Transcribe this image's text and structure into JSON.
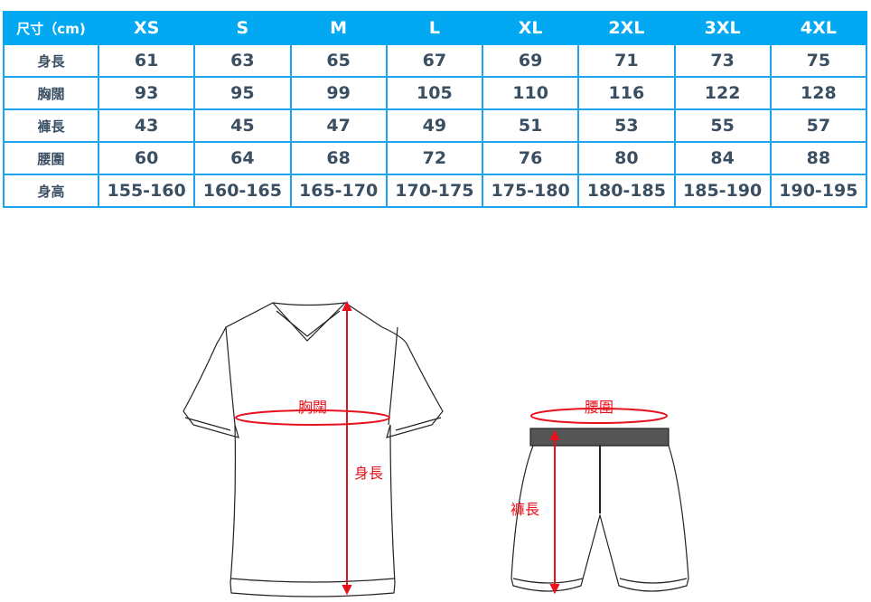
{
  "table": {
    "header_label": "尺寸（cm)",
    "sizes": [
      "XS",
      "S",
      "M",
      "L",
      "XL",
      "2XL",
      "3XL",
      "4XL"
    ],
    "rows": [
      {
        "label": "身長",
        "values": [
          "61",
          "63",
          "65",
          "67",
          "69",
          "71",
          "73",
          "75"
        ]
      },
      {
        "label": "胸闊",
        "values": [
          "93",
          "95",
          "99",
          "105",
          "110",
          "116",
          "122",
          "128"
        ]
      },
      {
        "label": "褲長",
        "values": [
          "43",
          "45",
          "47",
          "49",
          "51",
          "53",
          "55",
          "57"
        ]
      },
      {
        "label": "腰圍",
        "values": [
          "60",
          "64",
          "68",
          "72",
          "76",
          "80",
          "84",
          "88"
        ]
      },
      {
        "label": "身高",
        "values": [
          "155-160",
          "160-165",
          "165-170",
          "170-175",
          "175-180",
          "180-185",
          "185-190",
          "190-195"
        ]
      }
    ]
  },
  "diagram": {
    "shirt_chest_label": "胸闊",
    "shirt_length_label": "身長",
    "shorts_waist_label": "腰圍",
    "shorts_length_label": "褲長"
  },
  "colors": {
    "header": "#02a9f2",
    "border": "#1ea4ef",
    "text": "#3b4f63",
    "measure": "#e8101c"
  }
}
